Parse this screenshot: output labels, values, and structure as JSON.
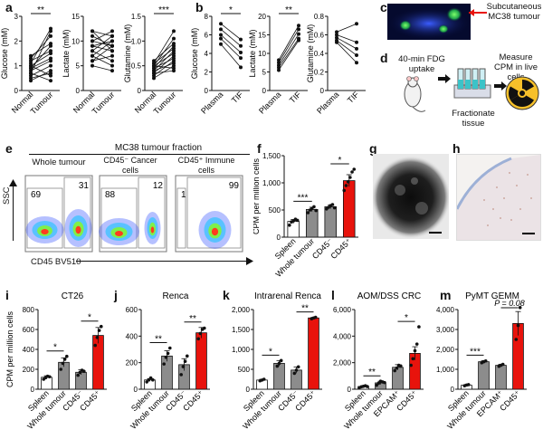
{
  "panel_labels": {
    "a": "a",
    "b": "b",
    "c": "c",
    "d": "d",
    "e": "e",
    "f": "f",
    "g": "g",
    "h": "h",
    "i": "i",
    "j": "j",
    "k": "k",
    "l": "l",
    "m": "m"
  },
  "colors": {
    "grey": "#8c8c8c",
    "red": "#e8130c",
    "black": "#111111",
    "spleen": "#ffffff"
  },
  "panel_a": {
    "plots": [
      {
        "ylabel": "Glucose (mM)",
        "ticks": [
          "0",
          "1",
          "2",
          "3"
        ],
        "ymax": 3,
        "xcats": [
          "Normal",
          "Tumour"
        ],
        "sig": "**",
        "pairs": [
          [
            1.1,
            2.5
          ],
          [
            1.3,
            2.2
          ],
          [
            0.9,
            1.8
          ],
          [
            0.7,
            2.4
          ],
          [
            1.0,
            1.5
          ],
          [
            0.8,
            1.2
          ],
          [
            1.2,
            1.6
          ],
          [
            0.6,
            1.0
          ],
          [
            0.5,
            0.7
          ],
          [
            1.4,
            1.9
          ],
          [
            0.9,
            1.3
          ],
          [
            0.4,
            0.8
          ],
          [
            1.0,
            0.6
          ],
          [
            0.7,
            0.4
          ]
        ]
      },
      {
        "ylabel": "Lactate (mM)",
        "ticks": [
          "0",
          "5",
          "10",
          "15"
        ],
        "ymax": 15,
        "xcats": [
          "Normal",
          "Tumour"
        ],
        "sig": "",
        "pairs": [
          [
            12,
            11
          ],
          [
            10,
            9
          ],
          [
            8,
            11
          ],
          [
            9,
            8
          ],
          [
            7,
            10
          ],
          [
            11,
            9
          ],
          [
            6,
            7
          ],
          [
            8,
            6
          ],
          [
            10,
            12
          ],
          [
            5,
            4
          ],
          [
            9,
            10
          ],
          [
            12,
            8
          ],
          [
            7,
            5
          ],
          [
            6,
            9
          ]
        ]
      },
      {
        "ylabel": "Glutamine (mM)",
        "ticks": [
          "0",
          "0.5",
          "1.0",
          "1.5"
        ],
        "ymax": 1.5,
        "xcats": [
          "Normal",
          "Tumour"
        ],
        "sig": "***",
        "pairs": [
          [
            0.55,
            1.2
          ],
          [
            0.5,
            1.05
          ],
          [
            0.45,
            0.9
          ],
          [
            0.6,
            0.95
          ],
          [
            0.4,
            0.8
          ],
          [
            0.5,
            0.75
          ],
          [
            0.35,
            0.7
          ],
          [
            0.45,
            0.65
          ],
          [
            0.3,
            0.6
          ],
          [
            0.55,
            0.85
          ],
          [
            0.25,
            0.5
          ],
          [
            0.4,
            0.55
          ],
          [
            0.5,
            0.45
          ],
          [
            0.35,
            0.4
          ]
        ]
      }
    ]
  },
  "panel_b": {
    "plots": [
      {
        "ylabel": "Glucose (mM)",
        "ticks": [
          "0",
          "2",
          "4",
          "6",
          "8"
        ],
        "ymax": 8,
        "xcats": [
          "Plasma",
          "TIF"
        ],
        "sig": "*",
        "pairs": [
          [
            7.2,
            5.5
          ],
          [
            6.6,
            4.8
          ],
          [
            6.0,
            4.1
          ],
          [
            5.6,
            3.5
          ],
          [
            5.0,
            2.5
          ]
        ]
      },
      {
        "ylabel": "Lactate (mM)",
        "ticks": [
          "0",
          "5",
          "10",
          "15",
          "20"
        ],
        "ymax": 20,
        "xcats": [
          "Plasma",
          "TIF"
        ],
        "sig": "**",
        "pairs": [
          [
            8.2,
            17.5
          ],
          [
            7.5,
            16.5
          ],
          [
            6.8,
            15.2
          ],
          [
            6.2,
            14.0
          ],
          [
            5.5,
            13.5
          ]
        ]
      },
      {
        "ylabel": "Glutamine (mM)",
        "ticks": [
          "0",
          "0.2",
          "0.4",
          "0.6",
          "0.8"
        ],
        "ymax": 0.8,
        "xcats": [
          "Plasma",
          "TIF"
        ],
        "sig": "",
        "pairs": [
          [
            0.63,
            0.72
          ],
          [
            0.6,
            0.52
          ],
          [
            0.57,
            0.45
          ],
          [
            0.54,
            0.38
          ],
          [
            0.52,
            0.3
          ]
        ]
      }
    ]
  },
  "panel_c": {
    "label_line1": "Subcutaneous",
    "label_line2": "MC38 tumour"
  },
  "panel_d": {
    "step1": "40-min FDG uptake",
    "step2_line1": "Fractionate",
    "step2_line2": "tissue",
    "step3_line1": "Measure",
    "step3_line2": "CPM in live cells"
  },
  "panel_e": {
    "header": "MC38 tumour fraction",
    "columns": [
      {
        "title": "Whole tumour",
        "left_pct": "69",
        "right_pct": "31"
      },
      {
        "title": "CD45⁻ Cancer cells",
        "left_pct": "88",
        "right_pct": "12"
      },
      {
        "title": "CD45⁺ Immune cells",
        "left_pct": "1",
        "right_pct": "99"
      }
    ],
    "y_axis": "SSC",
    "x_axis": "CD45 BV510"
  },
  "panel_f": {
    "ylabel": "CPM per million cells",
    "ticks": [
      "0",
      "500",
      "1,000",
      "1,500"
    ],
    "ymax": 1500,
    "categories": [
      "Spleen",
      "Whole tumour",
      "CD45⁻",
      "CD45⁺"
    ],
    "means": [
      290,
      510,
      560,
      1040
    ],
    "errors": [
      35,
      40,
      35,
      110
    ],
    "points": [
      [
        220,
        280,
        300,
        330,
        310
      ],
      [
        450,
        500,
        530,
        560,
        490
      ],
      [
        520,
        550,
        580,
        600,
        540
      ],
      [
        860,
        950,
        1020,
        1100,
        1200,
        1250
      ]
    ],
    "sig": [
      {
        "from": 0,
        "to": 1,
        "text": "***"
      },
      {
        "from": 2,
        "to": 3,
        "text": "*"
      }
    ]
  },
  "bottom_charts": [
    {
      "label": "i",
      "title": "CT26",
      "ylabel": "CPM per million cells",
      "ticks": [
        "0",
        "200",
        "400",
        "600",
        "800"
      ],
      "ymax": 800,
      "categories": [
        "Spleen",
        "Whole tumour",
        "CD45⁻",
        "CD45⁺"
      ],
      "means": [
        120,
        270,
        170,
        540
      ],
      "errors": [
        15,
        45,
        25,
        80
      ],
      "points": [
        [
          100,
          115,
          130,
          125
        ],
        [
          200,
          260,
          300,
          330
        ],
        [
          140,
          170,
          190,
          180
        ],
        [
          440,
          520,
          590,
          630
        ]
      ],
      "sig": [
        {
          "from": 0,
          "to": 1,
          "text": "*"
        },
        {
          "from": 2,
          "to": 3,
          "text": "*"
        }
      ],
      "pvalue": ""
    },
    {
      "label": "j",
      "title": "Renca",
      "ylabel": "",
      "ticks": [
        "0",
        "200",
        "400",
        "600"
      ],
      "ymax": 600,
      "categories": [
        "Spleen",
        "Whole tumour",
        "CD45⁻",
        "CD45⁺"
      ],
      "means": [
        70,
        250,
        185,
        425
      ],
      "errors": [
        10,
        40,
        45,
        40
      ],
      "points": [
        [
          55,
          70,
          85,
          70
        ],
        [
          190,
          240,
          270,
          310
        ],
        [
          110,
          170,
          210,
          250
        ],
        [
          380,
          420,
          450,
          460
        ]
      ],
      "sig": [
        {
          "from": 0,
          "to": 1,
          "text": "**"
        },
        {
          "from": 2,
          "to": 3,
          "text": "**"
        }
      ],
      "pvalue": ""
    },
    {
      "label": "k",
      "title": "Intrarenal Renca",
      "ylabel": "",
      "ticks": [
        "0",
        "500",
        "1,000",
        "1,500",
        "2,000"
      ],
      "ymax": 2000,
      "categories": [
        "Spleen",
        "Whole tumour",
        "CD45⁻",
        "CD45⁺"
      ],
      "means": [
        230,
        650,
        480,
        1790
      ],
      "errors": [
        20,
        70,
        80,
        15
      ],
      "points": [
        [
          210,
          230,
          250
        ],
        [
          580,
          650,
          720
        ],
        [
          400,
          480,
          560
        ],
        [
          1770,
          1790,
          1805
        ]
      ],
      "sig": [
        {
          "from": 0,
          "to": 1,
          "text": "*"
        },
        {
          "from": 2,
          "to": 3,
          "text": "**"
        }
      ],
      "pvalue": ""
    },
    {
      "label": "l",
      "title": "AOM/DSS CRC",
      "ylabel": "",
      "ticks": [
        "0",
        "2,000",
        "4,000",
        "6,000"
      ],
      "ymax": 6000,
      "categories": [
        "Spleen",
        "Whole tumour",
        "EPCAM⁺",
        "CD45⁺"
      ],
      "means": [
        200,
        480,
        1650,
        2700
      ],
      "errors": [
        40,
        120,
        200,
        500
      ],
      "points": [
        [
          120,
          180,
          220,
          260,
          200
        ],
        [
          300,
          450,
          600,
          550,
          500
        ],
        [
          1400,
          1600,
          1800,
          1750
        ],
        [
          1800,
          2300,
          2900,
          3400,
          4700
        ]
      ],
      "sig": [
        {
          "from": 0,
          "to": 1,
          "text": "**"
        },
        {
          "from": 2,
          "to": 3,
          "text": "*"
        }
      ],
      "pvalue": ""
    },
    {
      "label": "m",
      "title": "PyMT GEMM",
      "ylabel": "",
      "ticks": [
        "0",
        "1,000",
        "2,000",
        "3,000",
        "4,000"
      ],
      "ymax": 4000,
      "categories": [
        "Spleen",
        "Whole tumour",
        "EPCAM⁺",
        "CD45⁺"
      ],
      "means": [
        200,
        1380,
        1200,
        3300
      ],
      "errors": [
        40,
        60,
        50,
        600
      ],
      "points": [
        [
          170,
          210,
          230
        ],
        [
          1330,
          1380,
          1420
        ],
        [
          1150,
          1200,
          1250
        ],
        [
          2500,
          3200,
          4100
        ]
      ],
      "sig": [
        {
          "from": 0,
          "to": 1,
          "text": "***"
        }
      ],
      "pvalue": "P = 0.08"
    }
  ]
}
